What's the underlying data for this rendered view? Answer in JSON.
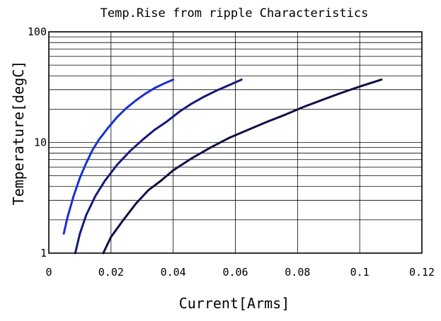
{
  "chart_data": {
    "type": "line",
    "title": "Temp.Rise from ripple Characteristics",
    "xlabel": "Current[Arms]",
    "ylabel": "Temperature[degC]",
    "xlim": [
      0,
      0.12
    ],
    "ylim": [
      1,
      100
    ],
    "yscale": "log",
    "grid": true,
    "x_ticks": [
      "0",
      "0.02",
      "0.04",
      "0.06",
      "0.08",
      "0.1",
      "0.12"
    ],
    "y_ticks": [
      "1",
      "10",
      "100"
    ],
    "series": [
      {
        "color": "#1a2fd6",
        "points": [
          [
            0.0048,
            1.5
          ],
          [
            0.006,
            2.1
          ],
          [
            0.008,
            3.3
          ],
          [
            0.01,
            4.8
          ],
          [
            0.012,
            6.5
          ],
          [
            0.014,
            8.5
          ],
          [
            0.016,
            10.5
          ],
          [
            0.019,
            13.5
          ],
          [
            0.022,
            17
          ],
          [
            0.025,
            20.5
          ],
          [
            0.028,
            24
          ],
          [
            0.031,
            27.5
          ],
          [
            0.034,
            31
          ],
          [
            0.037,
            34
          ],
          [
            0.04,
            37
          ]
        ]
      },
      {
        "color": "#141a78",
        "points": [
          [
            0.0085,
            1.0
          ],
          [
            0.01,
            1.5
          ],
          [
            0.012,
            2.2
          ],
          [
            0.015,
            3.3
          ],
          [
            0.018,
            4.5
          ],
          [
            0.022,
            6.3
          ],
          [
            0.026,
            8.3
          ],
          [
            0.03,
            10.5
          ],
          [
            0.034,
            13
          ],
          [
            0.038,
            15.5
          ],
          [
            0.042,
            19
          ],
          [
            0.046,
            22.5
          ],
          [
            0.05,
            26
          ],
          [
            0.054,
            29.5
          ],
          [
            0.058,
            33
          ],
          [
            0.062,
            37
          ]
        ]
      },
      {
        "color": "#0d1045",
        "points": [
          [
            0.0175,
            1.0
          ],
          [
            0.02,
            1.4
          ],
          [
            0.024,
            2.0
          ],
          [
            0.028,
            2.8
          ],
          [
            0.032,
            3.7
          ],
          [
            0.036,
            4.5
          ],
          [
            0.04,
            5.6
          ],
          [
            0.046,
            7.2
          ],
          [
            0.052,
            9
          ],
          [
            0.058,
            11
          ],
          [
            0.064,
            13
          ],
          [
            0.07,
            15.3
          ],
          [
            0.076,
            17.8
          ],
          [
            0.082,
            21
          ],
          [
            0.088,
            24.3
          ],
          [
            0.094,
            28
          ],
          [
            0.1,
            32
          ],
          [
            0.107,
            37
          ]
        ]
      }
    ]
  }
}
